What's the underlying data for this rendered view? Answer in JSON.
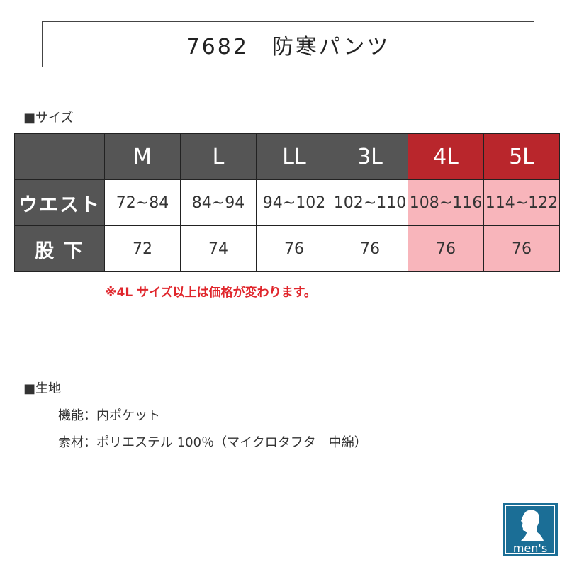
{
  "title": "7682　防寒パンツ",
  "size_section": {
    "heading": "■サイズ",
    "columns": [
      "M",
      "L",
      "LL",
      "3L",
      "4L",
      "5L"
    ],
    "highlight_columns": [
      "4L",
      "5L"
    ],
    "rows": [
      {
        "label": "ウエスト",
        "values": [
          "72~84",
          "84~94",
          "94~102",
          "102~110",
          "108~116",
          "114~122"
        ]
      },
      {
        "label": "股 下",
        "values": [
          "72",
          "74",
          "76",
          "76",
          "76",
          "76"
        ]
      }
    ],
    "note": "※4L サイズ以上は価格が変わります。"
  },
  "fabric_section": {
    "heading": "■生地",
    "lines": [
      "機能：内ポケット",
      "素材：ポリエステル 100％（マイクロタフタ　中綿）"
    ]
  },
  "badge": {
    "label": "men's",
    "icon": "man-silhouette-icon"
  },
  "colors": {
    "header_dark": "#555555",
    "header_red": "#b9262c",
    "highlight_pink": "#f8b5bb",
    "note_red": "#e0262c",
    "badge_blue": "#1b6e96"
  }
}
